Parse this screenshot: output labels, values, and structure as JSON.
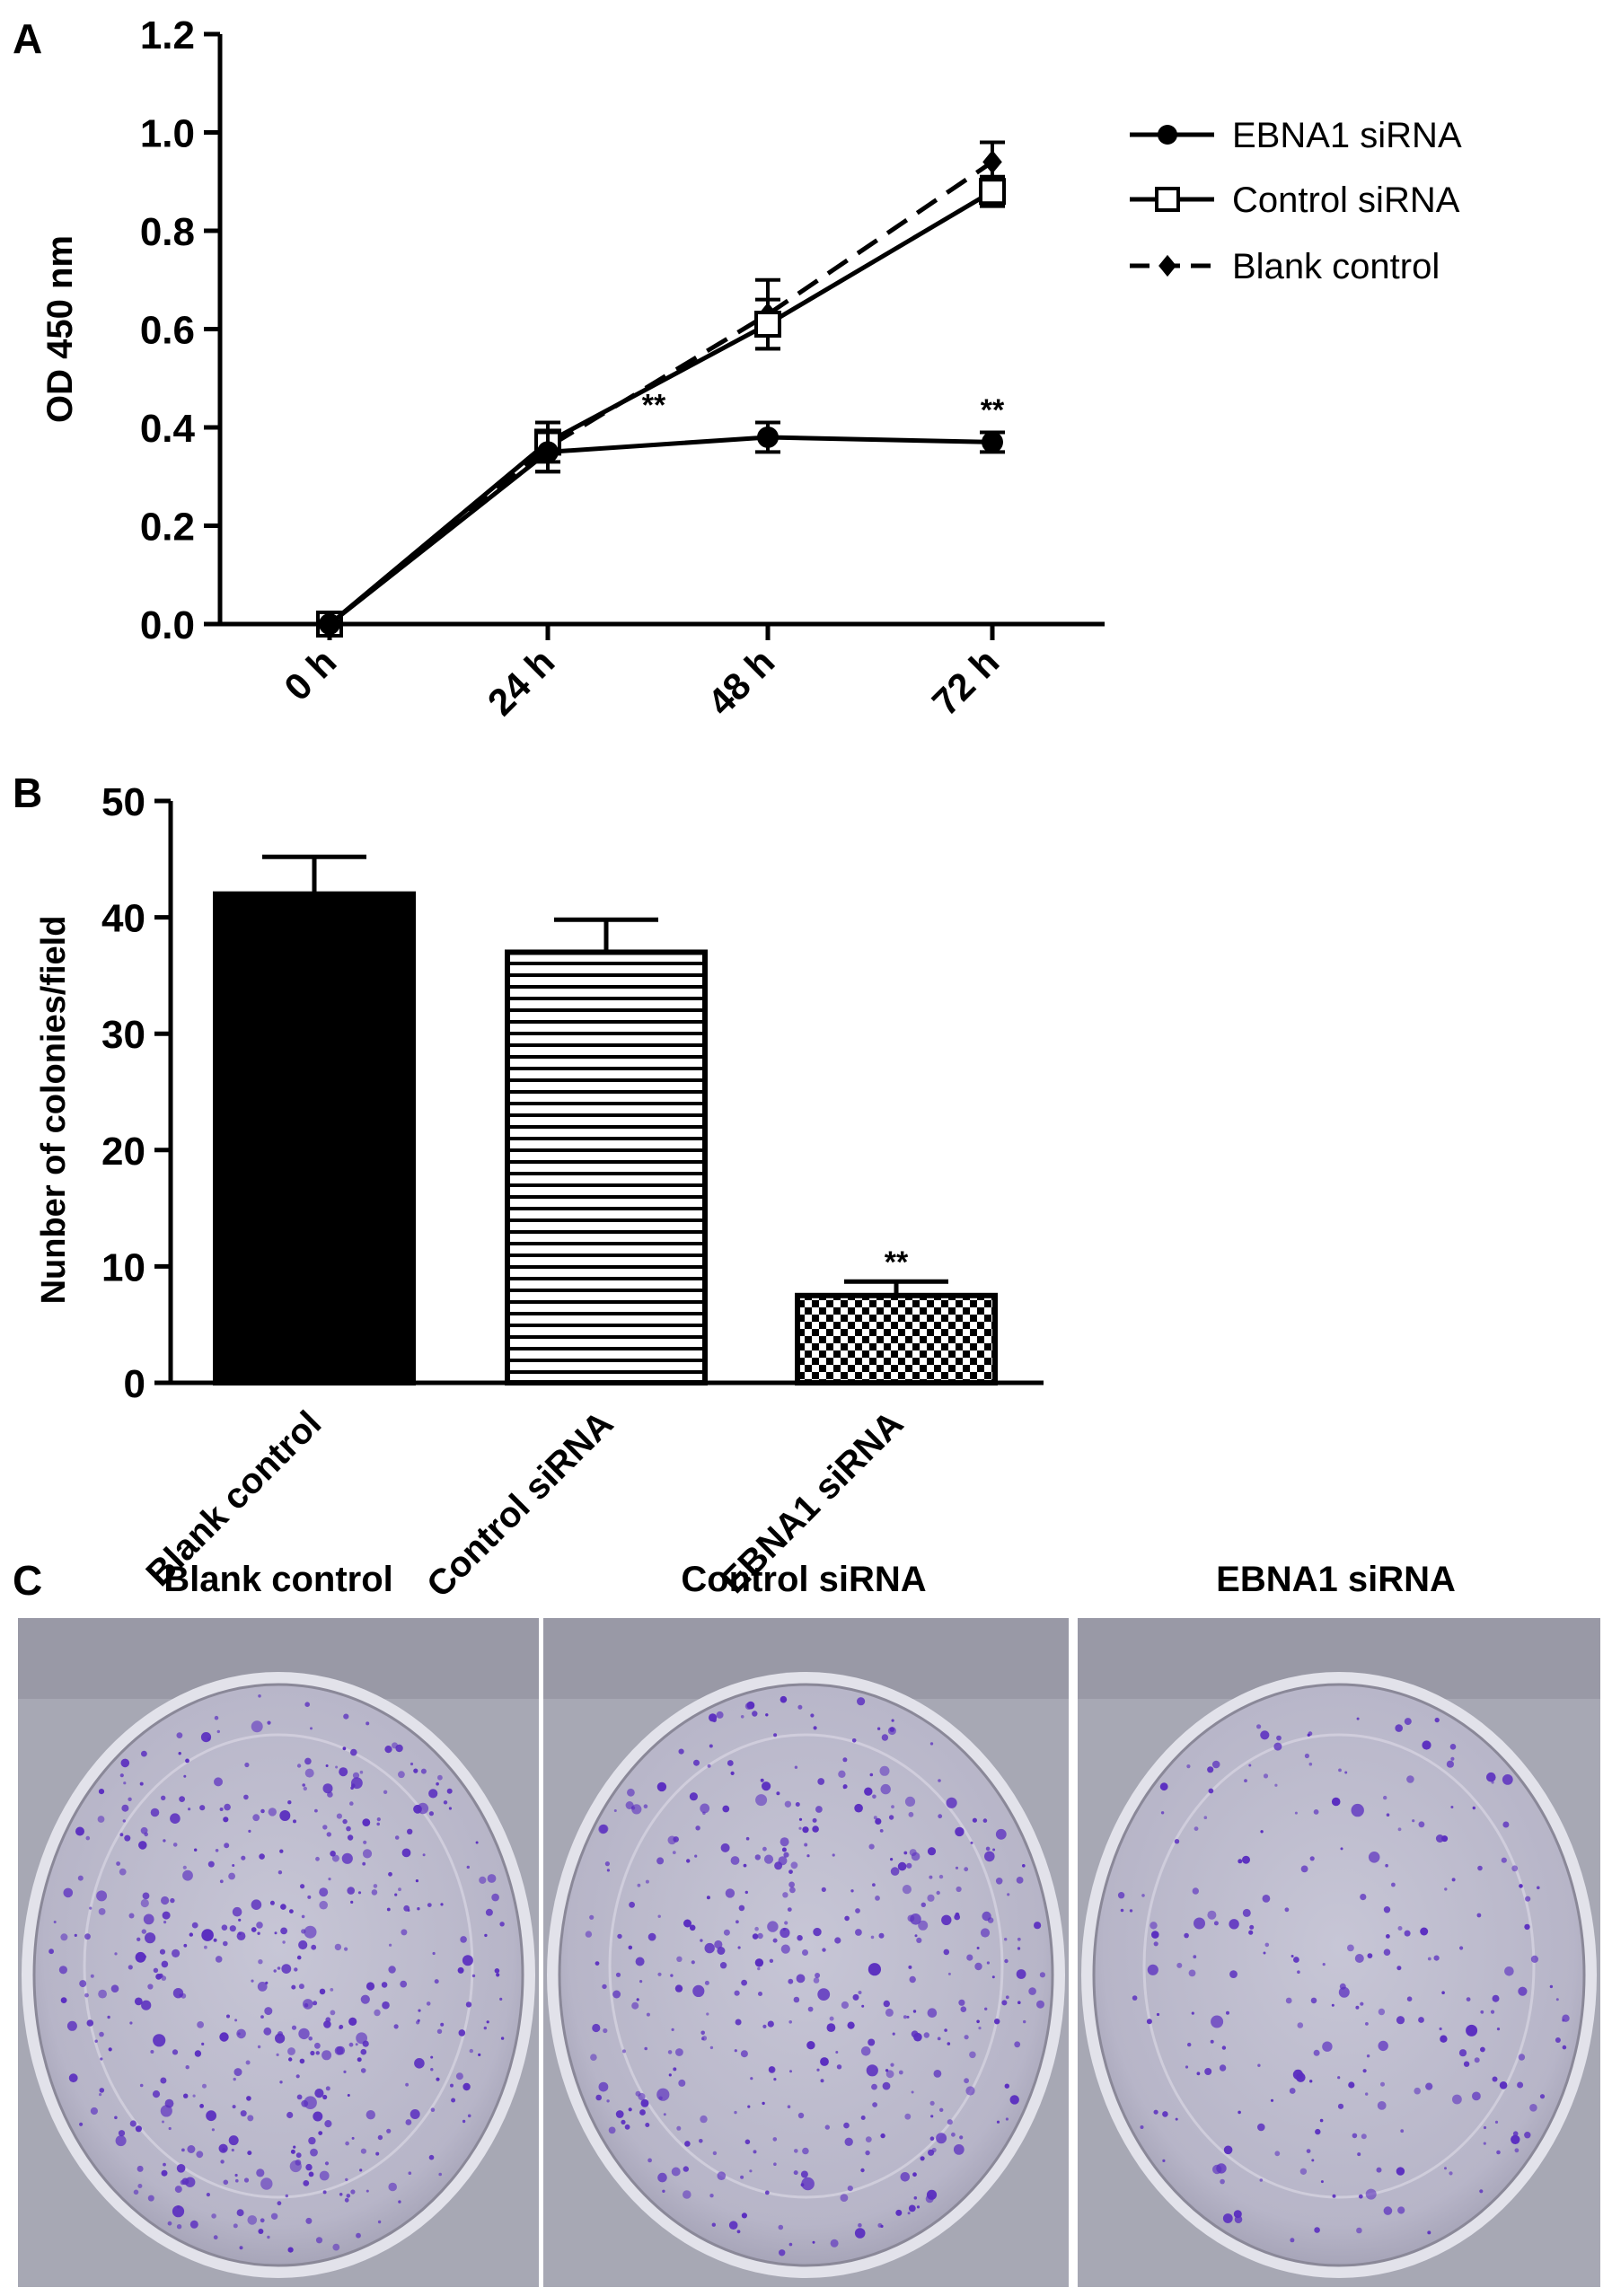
{
  "panels": {
    "a": {
      "letter": "A"
    },
    "b": {
      "letter": "B"
    },
    "c": {
      "letter": "C"
    }
  },
  "chart_data": [
    {
      "type": "line",
      "panel": "A",
      "title": "",
      "xlabel": "",
      "ylabel": "OD 450 nm",
      "categories": [
        "0 h",
        "24 h",
        "48 h",
        "72 h"
      ],
      "ylim": [
        0,
        1.2
      ],
      "yticks": [
        "0.0",
        "0.2",
        "0.4",
        "0.6",
        "0.8",
        "1.0",
        "1.2"
      ],
      "legend_position": "top-right",
      "series": [
        {
          "name": "EBNA1 siRNA",
          "values": [
            0.0,
            0.35,
            0.38,
            0.37
          ],
          "errors": [
            0.01,
            0.04,
            0.03,
            0.02
          ],
          "marker": "filled-circle",
          "dash": "solid"
        },
        {
          "name": "Control siRNA",
          "values": [
            0.0,
            0.37,
            0.61,
            0.88
          ],
          "errors": [
            0.01,
            0.04,
            0.05,
            0.03
          ],
          "marker": "open-square",
          "dash": "solid"
        },
        {
          "name": "Blank control",
          "values": [
            0.0,
            0.36,
            0.63,
            0.94
          ],
          "errors": [
            0.01,
            0.05,
            0.07,
            0.04
          ],
          "marker": "filled-diamond",
          "dash": "dashed"
        }
      ],
      "annotations": [
        {
          "text": "**",
          "x": "24 h",
          "y": 0.45
        },
        {
          "text": "**",
          "x": "72 h",
          "y": 0.44
        }
      ]
    },
    {
      "type": "bar",
      "panel": "B",
      "title": "",
      "xlabel": "",
      "ylabel": "Nunber of colonies/field",
      "categories": [
        "Blank control",
        "Control siRNA",
        "EBNA1 siRNA"
      ],
      "values": [
        42,
        37,
        7.5
      ],
      "errors": [
        3.2,
        2.8,
        1.2
      ],
      "fills": [
        "solid",
        "horizontal-stripes",
        "checkerboard"
      ],
      "ylim": [
        0,
        50
      ],
      "yticks": [
        "0",
        "10",
        "20",
        "30",
        "40",
        "50"
      ],
      "annotations": [
        {
          "text": "**",
          "category": "EBNA1 siRNA"
        }
      ]
    }
  ],
  "plates": [
    {
      "name": "Blank control",
      "colony_density": 0.9
    },
    {
      "name": "Control siRNA",
      "colony_density": 0.8
    },
    {
      "name": "EBNA1 siRNA",
      "colony_density": 0.45
    }
  ],
  "colors": {
    "ink": "#000000",
    "plate_background": "#a9aab6",
    "colony": "#5b2fc0"
  }
}
